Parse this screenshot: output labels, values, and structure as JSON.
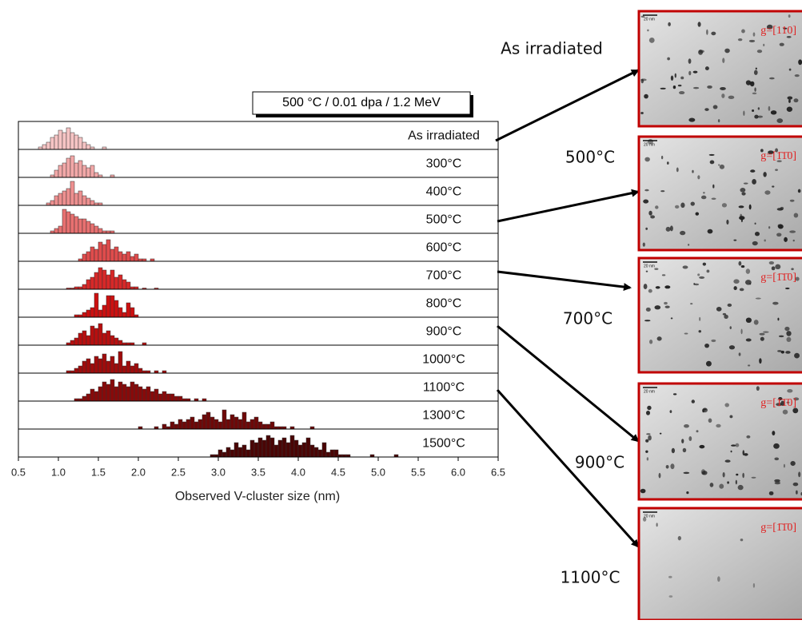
{
  "chart_data": {
    "type": "histogram",
    "title": "500 °C / 0.01 dpa / 1.2 MeV",
    "x_label": "Observed V-cluster size (nm)",
    "xlim": [
      0.5,
      6.5
    ],
    "xticks": [
      0.5,
      {
        "value": 1,
        "label": "1.0"
      },
      1.5,
      {
        "value": 2,
        "label": "2.0"
      },
      2.5,
      {
        "value": 3,
        "label": "3.0"
      },
      3.5,
      {
        "value": 4,
        "label": "4.0"
      },
      4.5,
      {
        "value": 5,
        "label": "5.0"
      },
      5.5,
      {
        "value": 6,
        "label": "6.0"
      },
      6.5
    ],
    "ylim": [
      0,
      10
    ],
    "series": [
      {
        "name": "As irradiated",
        "color": "#f6c4c4",
        "bins": [
          0.75,
          0.8,
          0.85,
          0.9,
          0.95,
          1,
          1.05,
          1.1,
          1.15,
          1.2,
          1.25,
          1.3,
          1.35,
          1.4,
          1.45,
          1.5,
          1.55,
          1.6
        ],
        "values": [
          1,
          2,
          3,
          5,
          6,
          8,
          7,
          9,
          7,
          6,
          5,
          3,
          2,
          1,
          0,
          0,
          1
        ]
      },
      {
        "name": "300°C",
        "color": "#f2a8a8",
        "bins": [
          0.9,
          0.95,
          1,
          1.05,
          1.1,
          1.15,
          1.2,
          1.25,
          1.3,
          1.35,
          1.4,
          1.45,
          1.5,
          1.55,
          1.6,
          1.65,
          1.7
        ],
        "values": [
          1,
          3,
          5,
          6,
          8,
          9,
          6,
          7,
          5,
          4,
          5,
          2,
          1,
          0,
          0,
          1
        ]
      },
      {
        "name": "400°C",
        "color": "#ee9090",
        "bins": [
          0.85,
          0.9,
          0.95,
          1,
          1.05,
          1.1,
          1.15,
          1.2,
          1.25,
          1.3,
          1.35,
          1.4,
          1.45,
          1.5,
          1.55
        ],
        "values": [
          1,
          2,
          4,
          5,
          6,
          7,
          10,
          5,
          6,
          4,
          3,
          2,
          1,
          1
        ]
      },
      {
        "name": "500°C",
        "color": "#e87070",
        "bins": [
          0.9,
          0.95,
          1,
          1.05,
          1.1,
          1.15,
          1.2,
          1.25,
          1.3,
          1.35,
          1.4,
          1.45,
          1.5,
          1.55,
          1.6,
          1.65,
          1.7
        ],
        "values": [
          1,
          2,
          3,
          10,
          9,
          8,
          7,
          6,
          6,
          5,
          4,
          3,
          2,
          1,
          1,
          1
        ]
      },
      {
        "name": "600°C",
        "color": "#e04c4c",
        "bins": [
          1.25,
          1.3,
          1.35,
          1.4,
          1.45,
          1.5,
          1.55,
          1.6,
          1.65,
          1.7,
          1.75,
          1.8,
          1.85,
          1.9,
          1.95,
          2,
          2.05,
          2.1,
          2.15,
          2.2
        ],
        "values": [
          1,
          3,
          4,
          6,
          5,
          8,
          7,
          9,
          5,
          6,
          4,
          3,
          4,
          2,
          3,
          1,
          1,
          0,
          1
        ]
      },
      {
        "name": "700°C",
        "color": "#d82828",
        "bins": [
          1.1,
          1.15,
          1.2,
          1.25,
          1.3,
          1.35,
          1.4,
          1.45,
          1.5,
          1.55,
          1.6,
          1.65,
          1.7,
          1.75,
          1.8,
          1.85,
          1.9,
          1.95,
          2,
          2.05,
          2.1,
          2.15,
          2.2,
          2.25
        ],
        "values": [
          0.5,
          0.5,
          1,
          1,
          2,
          4,
          5,
          7,
          9,
          8,
          6,
          8,
          5,
          6,
          4,
          3,
          1,
          1,
          0,
          0.5,
          0,
          0,
          0.5
        ]
      },
      {
        "name": "800°C",
        "color": "#cc1010",
        "bins": [
          1.2,
          1.25,
          1.3,
          1.35,
          1.4,
          1.45,
          1.5,
          1.55,
          1.6,
          1.65,
          1.7,
          1.75,
          1.8,
          1.85,
          1.9,
          1.95,
          2
        ],
        "values": [
          1,
          1,
          2,
          3,
          4,
          10,
          3,
          5,
          9,
          9,
          7,
          4,
          2,
          6,
          4,
          1
        ]
      },
      {
        "name": "900°C",
        "color": "#b80f0f",
        "bins": [
          1.1,
          1.15,
          1.2,
          1.25,
          1.3,
          1.35,
          1.4,
          1.45,
          1.5,
          1.55,
          1.6,
          1.65,
          1.7,
          1.75,
          1.8,
          1.85,
          1.9,
          1.95,
          2,
          2.05,
          2.1
        ],
        "values": [
          1,
          2,
          3,
          5,
          6,
          4,
          8,
          7,
          9,
          5,
          6,
          4,
          3,
          2,
          1,
          1,
          1,
          0,
          0,
          1
        ]
      },
      {
        "name": "1000°C",
        "color": "#a00c0c",
        "bins": [
          1.1,
          1.15,
          1.2,
          1.25,
          1.3,
          1.35,
          1.4,
          1.45,
          1.5,
          1.55,
          1.6,
          1.65,
          1.7,
          1.75,
          1.8,
          1.85,
          1.9,
          1.95,
          2,
          2.05,
          2.1,
          2.15,
          2.2,
          2.25,
          2.3,
          2.35
        ],
        "values": [
          1,
          1,
          2,
          3,
          5,
          6,
          4,
          7,
          6,
          8,
          5,
          7,
          4,
          9,
          3,
          5,
          3,
          4,
          2,
          1,
          1,
          0,
          1,
          0,
          1
        ]
      },
      {
        "name": "1100°C",
        "color": "#880a0a",
        "bins": [
          1.2,
          1.25,
          1.3,
          1.35,
          1.4,
          1.45,
          1.5,
          1.55,
          1.6,
          1.65,
          1.7,
          1.75,
          1.8,
          1.85,
          1.9,
          1.95,
          2,
          2.05,
          2.1,
          2.15,
          2.2,
          2.25,
          2.3,
          2.35,
          2.4,
          2.45,
          2.5,
          2.55,
          2.6,
          2.65,
          2.7,
          2.75,
          2.8,
          2.85
        ],
        "values": [
          1,
          1,
          2,
          3,
          5,
          4,
          6,
          8,
          7,
          9,
          6,
          8,
          7,
          6,
          8,
          7,
          6,
          5,
          6,
          4,
          5,
          3,
          4,
          3,
          3,
          2,
          2,
          1,
          1,
          0,
          1,
          0,
          1
        ]
      },
      {
        "name": "1300°C",
        "color": "#6e0808",
        "bins": [
          2,
          2.05,
          2.1,
          2.15,
          2.2,
          2.25,
          2.3,
          2.35,
          2.4,
          2.45,
          2.5,
          2.55,
          2.6,
          2.65,
          2.7,
          2.75,
          2.8,
          2.85,
          2.9,
          2.95,
          3,
          3.05,
          3.1,
          3.15,
          3.2,
          3.25,
          3.3,
          3.35,
          3.4,
          3.45,
          3.5,
          3.55,
          3.6,
          3.65,
          3.7,
          3.75,
          3.8,
          3.85,
          3.9,
          3.95,
          4,
          4.05,
          4.1,
          4.15,
          4.2
        ],
        "values": [
          1,
          0,
          0,
          0,
          1,
          0,
          2,
          1,
          3,
          2,
          4,
          3,
          4,
          5,
          3,
          4,
          6,
          7,
          5,
          4,
          3,
          8,
          4,
          6,
          5,
          4,
          7,
          3,
          4,
          5,
          3,
          2,
          2,
          3,
          1,
          1,
          1,
          0,
          1,
          0,
          0,
          0,
          0,
          1
        ]
      },
      {
        "name": "1500°C",
        "color": "#4a0505",
        "bins": [
          2.9,
          2.95,
          3,
          3.05,
          3.1,
          3.15,
          3.2,
          3.25,
          3.3,
          3.35,
          3.4,
          3.45,
          3.5,
          3.55,
          3.6,
          3.65,
          3.7,
          3.75,
          3.8,
          3.85,
          3.9,
          3.95,
          4,
          4.05,
          4.1,
          4.15,
          4.2,
          4.25,
          4.3,
          4.35,
          4.4,
          4.45,
          4.5,
          4.55,
          4.6,
          4.65,
          4.7,
          4.75,
          4.8,
          4.85,
          4.9,
          4.95,
          5,
          5.05,
          5.1,
          5.15,
          5.2,
          5.25
        ],
        "values": [
          1,
          1,
          3,
          2,
          4,
          3,
          6,
          4,
          5,
          3,
          7,
          6,
          8,
          7,
          9,
          8,
          5,
          7,
          8,
          6,
          9,
          7,
          5,
          6,
          8,
          5,
          4,
          3,
          6,
          2,
          3,
          3,
          1,
          1,
          1,
          0,
          0,
          0,
          0,
          0,
          1,
          0,
          0,
          0,
          0,
          0,
          1
        ]
      }
    ]
  },
  "images": {
    "scale_bar": "20 nm",
    "items": [
      {
        "label": "As irradiated",
        "g": "g=[110]"
      },
      {
        "label": "500°C",
        "g": "g=[1̄1̄0]"
      },
      {
        "label": "700°C",
        "g": "g=[1̄1̄0]"
      },
      {
        "label": "900°C",
        "g": "g=[1̄1̄0]"
      },
      {
        "label": "1100°C",
        "g": "g=[1̄1̄0]"
      }
    ]
  }
}
